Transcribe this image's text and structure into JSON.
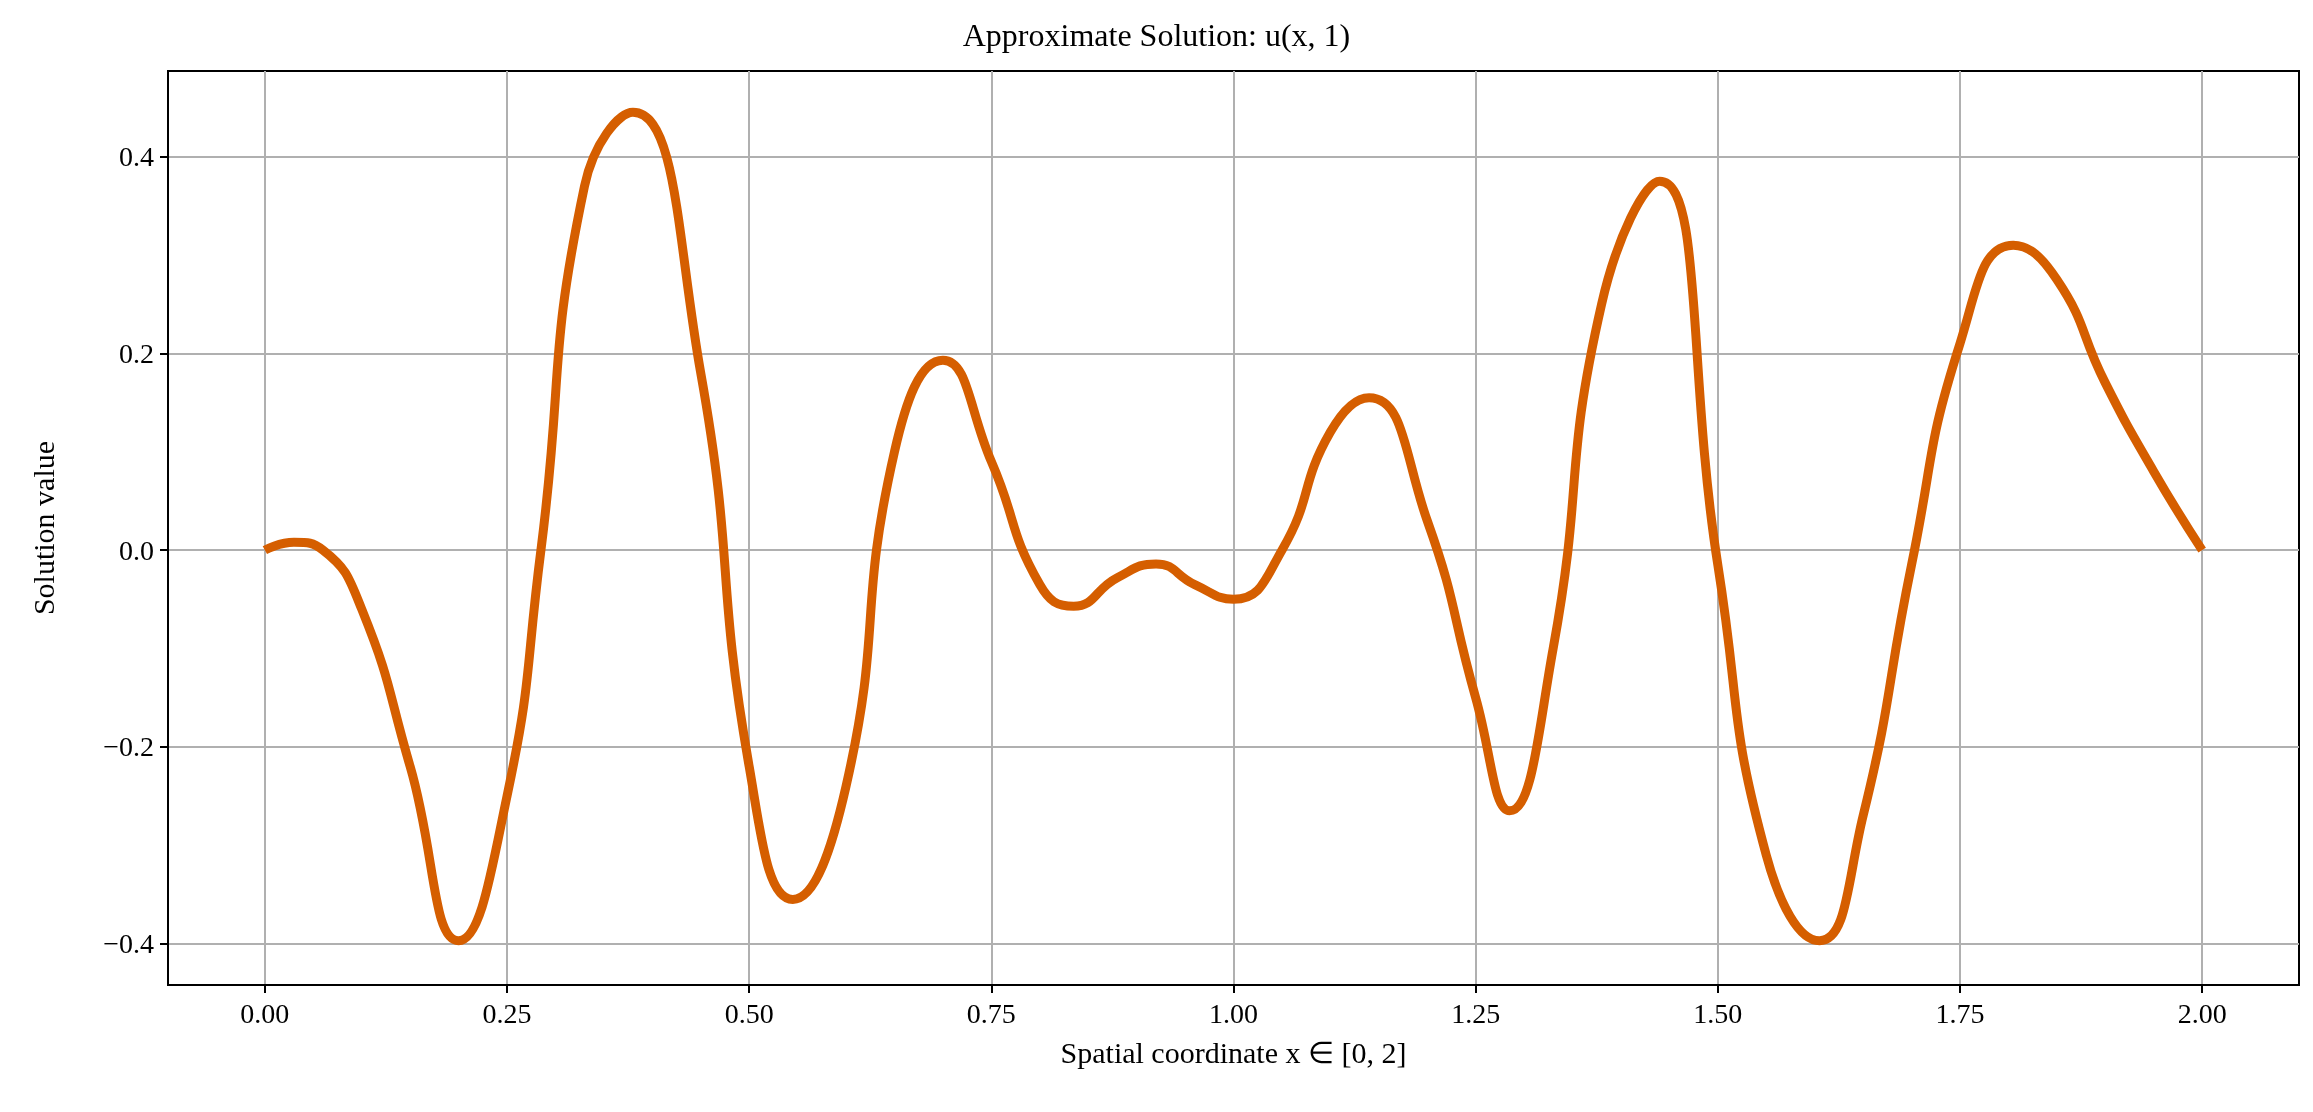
{
  "chart_data": {
    "type": "line",
    "title": "Approximate Solution: u(x, 1)",
    "xlabel": "Spatial coordinate x ∈ [0, 2]",
    "ylabel": "Solution value",
    "x": [
      0,
      0.03,
      0.06,
      0.1,
      0.15,
      0.2,
      0.25,
      0.285,
      0.33,
      0.38,
      0.45,
      0.5,
      0.545,
      0.6,
      0.65,
      0.7,
      0.75,
      0.8,
      0.835,
      0.88,
      0.92,
      0.96,
      1.0,
      1.05,
      1.1,
      1.14,
      1.2,
      1.25,
      1.285,
      1.33,
      1.38,
      1.44,
      1.5,
      1.55,
      1.605,
      1.65,
      1.7,
      1.75,
      1.805,
      1.85,
      1.9,
      1.95,
      2.0
    ],
    "series": [
      {
        "color": "#d55e00",
        "values": [
          0,
          0.008,
          0,
          -0.06,
          -0.22,
          -0.397,
          -0.25,
          0,
          0.37,
          0.445,
          0.18,
          -0.22,
          -0.355,
          -0.24,
          0.1,
          0.193,
          0.09,
          -0.035,
          -0.057,
          -0.028,
          -0.014,
          -0.035,
          -0.05,
          0,
          0.12,
          0.155,
          0.03,
          -0.15,
          -0.265,
          -0.1,
          0.25,
          0.375,
          -0.015,
          -0.31,
          -0.397,
          -0.27,
          -0.015,
          0.21,
          0.31,
          0.275,
          0.17,
          0.08,
          0
        ]
      }
    ],
    "xlim": [
      -0.1,
      2.1
    ],
    "ylim": [
      -0.442,
      0.487
    ],
    "xticks": [
      {
        "value": 0,
        "label": "0.00"
      },
      {
        "value": 0.25,
        "label": "0.25"
      },
      {
        "value": 0.5,
        "label": "0.50"
      },
      {
        "value": 0.75,
        "label": "0.75"
      },
      {
        "value": 1,
        "label": "1.00"
      },
      {
        "value": 1.25,
        "label": "1.25"
      },
      {
        "value": 1.5,
        "label": "1.50"
      },
      {
        "value": 1.75,
        "label": "1.75"
      },
      {
        "value": 2,
        "label": "2.00"
      }
    ],
    "yticks": [
      {
        "value": -0.4,
        "label": "−0.4"
      },
      {
        "value": -0.2,
        "label": "−0.2"
      },
      {
        "value": 0,
        "label": "0.0"
      },
      {
        "value": 0.2,
        "label": "0.2"
      },
      {
        "value": 0.4,
        "label": "0.4"
      }
    ],
    "grid": true,
    "marker": "none",
    "line_style": "solid"
  }
}
